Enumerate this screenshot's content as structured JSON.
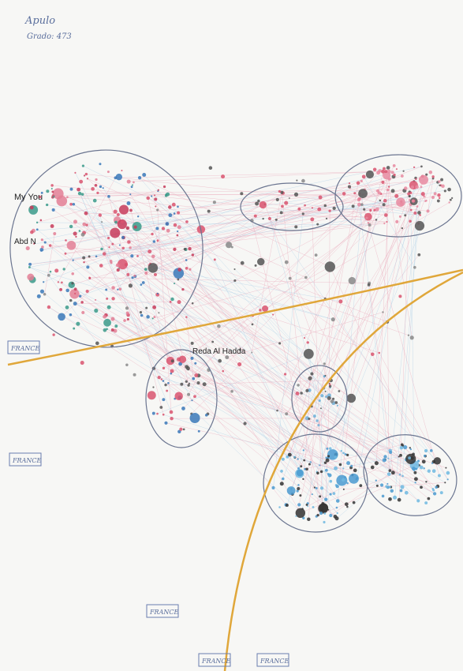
{
  "header": {
    "title": "Apulo",
    "subtitle": "Grado: 473"
  },
  "nodes": [
    {
      "label": "My You"
    },
    {
      "label": "Abd N"
    },
    {
      "label": "Reda Al Hadda"
    }
  ],
  "annotations": [
    "FRANCE",
    "FRANCE",
    "FRANCE",
    "FRANCE",
    "FRANCE"
  ]
}
